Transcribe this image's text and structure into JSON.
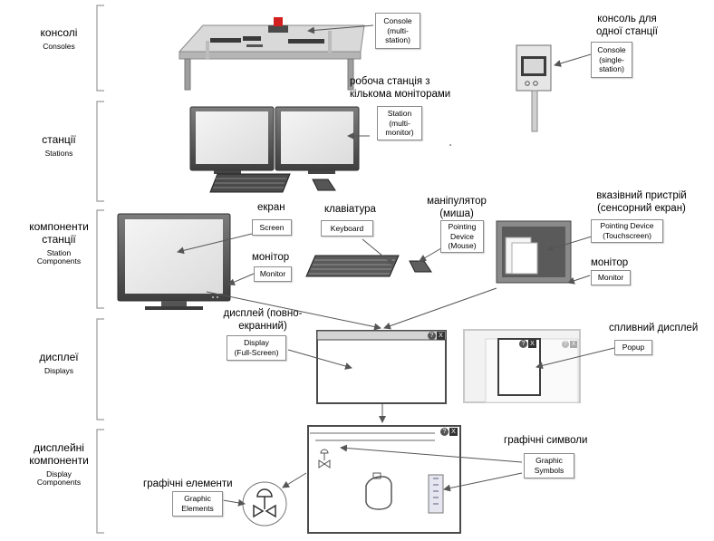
{
  "categories": [
    {
      "ua": "консолі",
      "en": "Consoles"
    },
    {
      "ua": "станції",
      "en": "Stations"
    },
    {
      "ua": "компоненти\nстанції",
      "en": "Station\nComponents"
    },
    {
      "ua": "дисплеї",
      "en": "Displays"
    },
    {
      "ua": "дисплейні\nкомпоненти",
      "en": "Display\nComponents"
    }
  ],
  "captions": {
    "single_console": "консоль для\nодної станції",
    "multi_monitor": "робоча станція з\nкількома моніторами",
    "screen": "екран",
    "keyboard": "клавіатура",
    "mouse": "маніпулятор\n(миша)",
    "pointing_device": "вказівний пристрій\n(сенсорний екран)",
    "monitor_left": "монітор",
    "monitor_right": "монітор",
    "full_display": "дисплей (повно-\nекранний)",
    "popup_display": "спливний дисплей",
    "graphic_symbols": "графічні символи",
    "graphic_elements": "графічні елементи"
  },
  "labels": {
    "console_multi": "Console\n(multi-\nstation)",
    "console_single": "Console\n(single-\nstation)",
    "station_multi": "Station\n(multi-\nmonitor)",
    "screen": "Screen",
    "keyboard": "Keyboard",
    "mouse": "Pointing\nDevice\n(Mouse)",
    "touchscreen": "Pointing Device\n(Touchscreen)",
    "monitor_left": "Monitor",
    "monitor_right": "Monitor",
    "display_full": "Display\n(Full-Screen)",
    "popup": "Popup",
    "graphic_symbols": "Graphic\nSymbols",
    "graphic_elements": "Graphic\nElements"
  },
  "window_buttons": {
    "help": "?",
    "close": "X"
  },
  "colors": {
    "accent_red": "#d22020",
    "line": "#555555",
    "bracket": "#9a9a9a"
  }
}
